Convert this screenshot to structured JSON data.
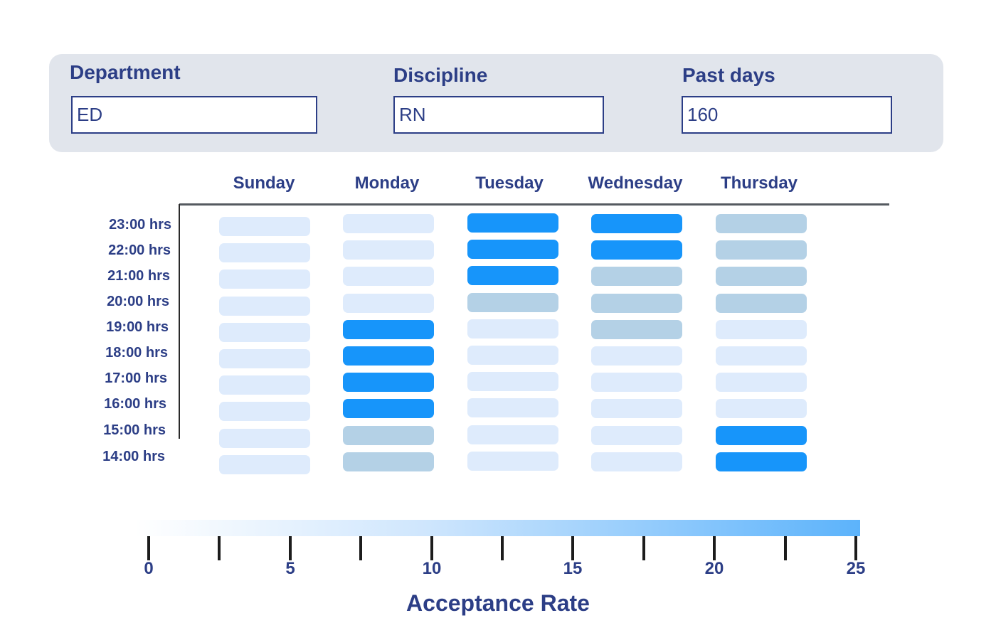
{
  "filters": {
    "department": {
      "label": "Department",
      "value": "ED"
    },
    "discipline": {
      "label": "Discipline",
      "value": "RN"
    },
    "past_days": {
      "label": "Past days",
      "value": "160"
    }
  },
  "colors": {
    "low": "#deebfc",
    "medium": "#b4d1e6",
    "high": "#1795fa",
    "text": "#2c3e86"
  },
  "chart_data": {
    "type": "heatmap",
    "days": [
      "Sunday",
      "Monday",
      "Tuesday",
      "Wednesday",
      "Thursday"
    ],
    "hours": [
      "23:00 hrs",
      "22:00 hrs",
      "21:00 hrs",
      "20:00 hrs",
      "19:00 hrs",
      "18:00 hrs",
      "17:00 hrs",
      "16:00 hrs",
      "15:00 hrs",
      "14:00 hrs"
    ],
    "levels": {
      "Sunday": [
        "low",
        "low",
        "low",
        "low",
        "low",
        "low",
        "low",
        "low",
        "low",
        "low"
      ],
      "Monday": [
        "low",
        "low",
        "low",
        "low",
        "high",
        "high",
        "high",
        "high",
        "medium",
        "medium"
      ],
      "Tuesday": [
        "high",
        "high",
        "high",
        "medium",
        "low",
        "low",
        "low",
        "low",
        "low",
        "low"
      ],
      "Wednesday": [
        "high",
        "high",
        "medium",
        "medium",
        "medium",
        "low",
        "low",
        "low",
        "low",
        "low"
      ],
      "Thursday": [
        "medium",
        "medium",
        "medium",
        "medium",
        "low",
        "low",
        "low",
        "low",
        "high",
        "high"
      ]
    },
    "scale": {
      "title": "Acceptance Rate",
      "range": [
        0,
        25
      ],
      "tick_values": [
        0,
        2.5,
        5,
        7.5,
        10,
        12.5,
        15,
        17.5,
        20,
        22.5,
        25
      ],
      "tick_labels": [
        "0",
        "5",
        "10",
        "15",
        "20",
        "25"
      ],
      "labeled_values": [
        0,
        5,
        10,
        15,
        20,
        25
      ]
    }
  }
}
